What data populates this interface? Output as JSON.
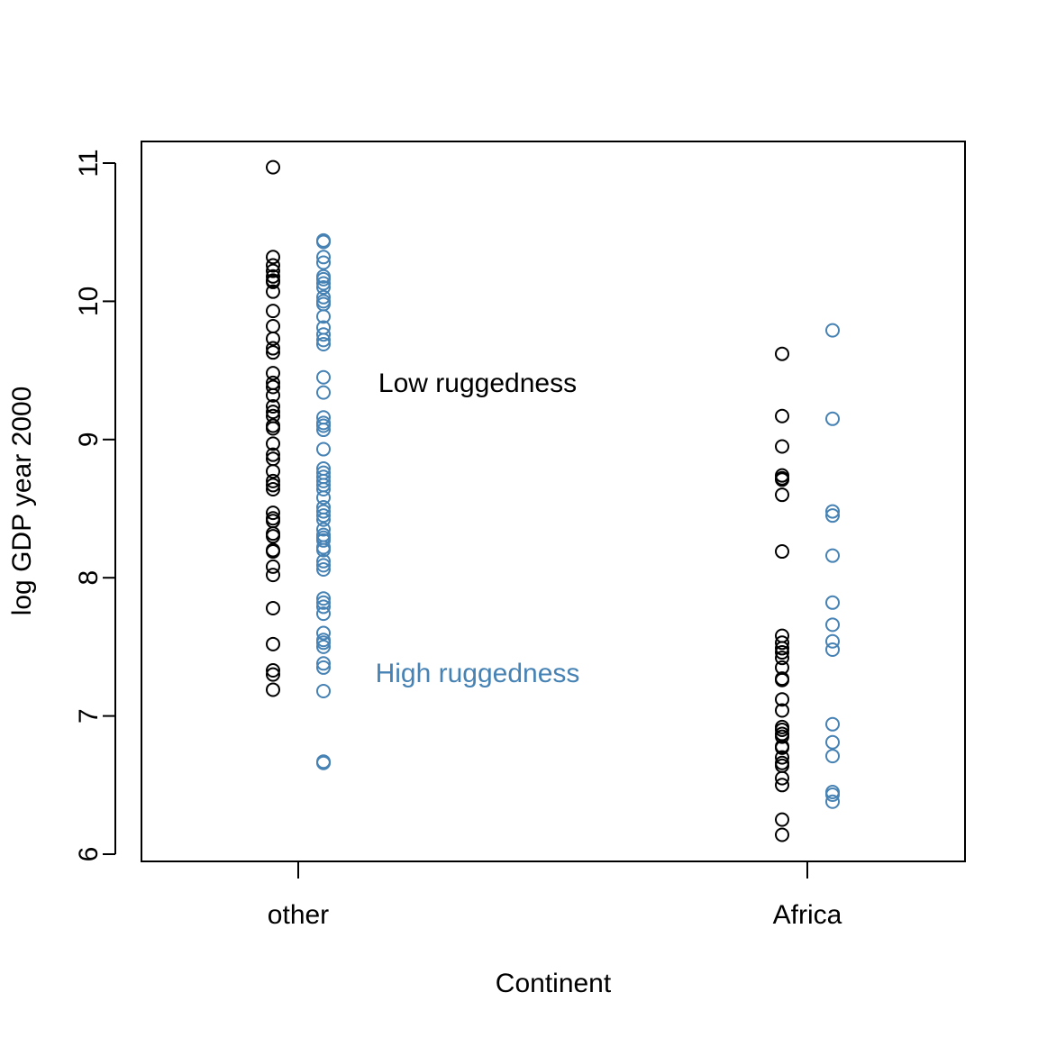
{
  "chart_data": {
    "type": "scatter",
    "xlabel": "Continent",
    "ylabel": "log GDP year 2000",
    "categories": [
      "other",
      "Africa"
    ],
    "ylim": [
      6,
      11
    ],
    "yticks": [
      6,
      7,
      8,
      9,
      10,
      11
    ],
    "grid": false,
    "colors": {
      "low": "#000000",
      "high": "#4682B4"
    },
    "annotations": [
      {
        "text": "Low ruggedness",
        "series": "low"
      },
      {
        "text": "High ruggedness",
        "series": "high"
      }
    ],
    "series": [
      {
        "key": "low",
        "category": "other",
        "values": [
          10.97,
          10.32,
          10.26,
          10.22,
          10.18,
          10.15,
          10.14,
          10.07,
          9.93,
          9.82,
          9.73,
          9.66,
          9.63,
          9.48,
          9.41,
          9.38,
          9.32,
          9.24,
          9.2,
          9.17,
          9.1,
          9.08,
          8.97,
          8.89,
          8.86,
          8.77,
          8.7,
          8.67,
          8.64,
          8.47,
          8.43,
          8.41,
          8.32,
          8.3,
          8.2,
          8.19,
          8.08,
          8.02,
          7.78,
          7.52,
          7.33,
          7.3,
          7.19
        ]
      },
      {
        "key": "high",
        "category": "other",
        "values": [
          10.44,
          10.43,
          10.32,
          10.28,
          10.18,
          10.16,
          10.13,
          10.1,
          10.03,
          10.0,
          9.98,
          9.89,
          9.81,
          9.76,
          9.72,
          9.69,
          9.45,
          9.34,
          9.16,
          9.12,
          9.1,
          9.07,
          8.93,
          8.79,
          8.76,
          8.73,
          8.7,
          8.67,
          8.64,
          8.58,
          8.51,
          8.48,
          8.45,
          8.42,
          8.35,
          8.31,
          8.29,
          8.27,
          8.22,
          8.2,
          8.12,
          8.09,
          8.06,
          7.85,
          7.82,
          7.79,
          7.74,
          7.6,
          7.55,
          7.53,
          7.5,
          7.38,
          7.35,
          7.18,
          6.67,
          6.66
        ]
      },
      {
        "key": "low",
        "category": "Africa",
        "values": [
          9.62,
          9.17,
          8.95,
          8.74,
          8.72,
          8.71,
          8.6,
          8.19,
          7.58,
          7.53,
          7.49,
          7.46,
          7.42,
          7.35,
          7.27,
          7.26,
          7.12,
          7.04,
          6.92,
          6.9,
          6.87,
          6.85,
          6.78,
          6.77,
          6.7,
          6.66,
          6.64,
          6.55,
          6.5,
          6.25,
          6.14
        ]
      },
      {
        "key": "high",
        "category": "Africa",
        "values": [
          9.79,
          9.15,
          8.48,
          8.45,
          8.16,
          7.82,
          7.66,
          7.54,
          7.48,
          6.94,
          6.81,
          6.71,
          6.45,
          6.43,
          6.38
        ]
      }
    ]
  }
}
